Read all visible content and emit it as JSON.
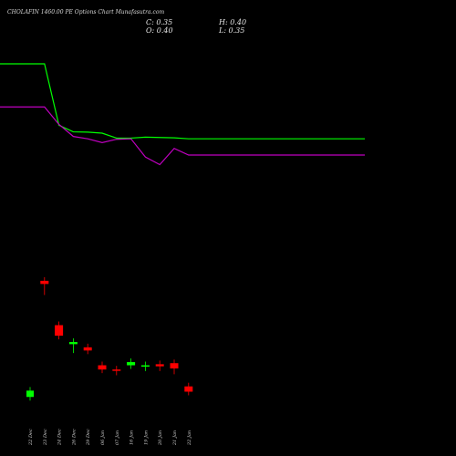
{
  "header": {
    "title": "CHOLAFIN 1460.00 PE Options Chart Munafasutra.com",
    "open_label": "O: 0.40",
    "close_label": "C: 0.35",
    "high_label": "H: 0.40",
    "low_label": "L: 0.35"
  },
  "chart_data": {
    "type": "candlestick",
    "x_labels": [
      "22 Dec",
      "23 Dec",
      "24 Dec",
      "26 Dec",
      "29 Dec",
      "06 Jan",
      "07 Jan",
      "16 Jan",
      "19 Jan",
      "20 Jan",
      "21 Jan",
      "22 Jan"
    ],
    "candles": [
      {
        "open": 0.3,
        "high": 0.36,
        "low": 0.3,
        "close": 0.36
      },
      {
        "open": 1.4,
        "high": 1.4,
        "low": 1.3,
        "close": 1.37
      },
      {
        "open": 0.98,
        "high": 0.98,
        "low": 0.88,
        "close": 0.88
      },
      {
        "open": 0.8,
        "high": 0.82,
        "low": 0.75,
        "close": 0.82
      },
      {
        "open": 0.77,
        "high": 0.77,
        "low": 0.74,
        "close": 0.74
      },
      {
        "open": 0.6,
        "high": 0.6,
        "low": 0.56,
        "close": 0.56
      },
      {
        "open": 0.56,
        "high": 0.56,
        "low": 0.54,
        "close": 0.55
      },
      {
        "open": 0.6,
        "high": 0.63,
        "low": 0.6,
        "close": 0.63
      },
      {
        "open": 0.59,
        "high": 0.6,
        "low": 0.58,
        "close": 0.6
      },
      {
        "open": 0.61,
        "high": 0.61,
        "low": 0.58,
        "close": 0.59
      },
      {
        "open": 0.62,
        "high": 0.62,
        "low": 0.55,
        "close": 0.57
      },
      {
        "open": 0.4,
        "high": 0.4,
        "low": 0.35,
        "close": 0.35
      }
    ],
    "lines": [
      {
        "color": "#00ff00",
        "values": [
          9.9,
          9.9,
          6.2,
          5.8,
          5.78,
          5.72,
          5.42,
          5.42,
          5.48,
          5.46,
          5.44,
          5.38
        ]
      },
      {
        "color": "#c000c0",
        "values": [
          7.3,
          7.3,
          6.25,
          5.52,
          5.38,
          5.15,
          5.35,
          5.38,
          4.28,
          3.82,
          4.8,
          4.4
        ]
      }
    ],
    "y_range": [
      0,
      13.5
    ],
    "colors": {
      "up": "#00ff00",
      "down": "#ff0000",
      "background": "#000000"
    }
  }
}
